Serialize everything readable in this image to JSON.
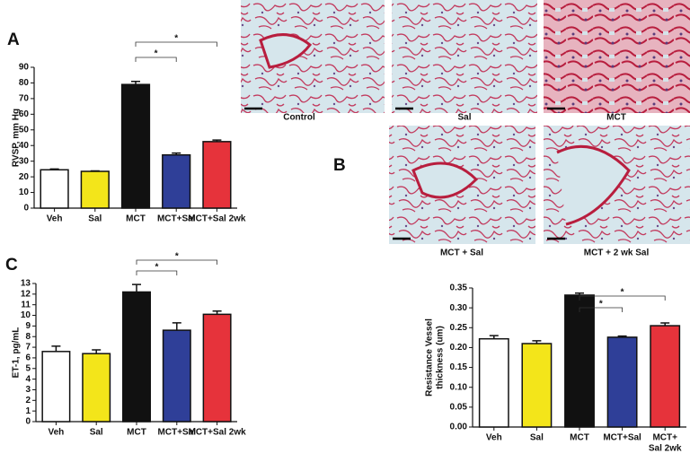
{
  "chart_data": [
    {
      "type": "bar",
      "panel": "A",
      "ylabel": [
        "RVSP, mm Hg"
      ],
      "categories": [
        "Veh",
        "Sal",
        "MCT",
        "MCT+Sal",
        "MCT+Sal 2wk"
      ],
      "values": [
        24.5,
        23.5,
        79,
        34,
        42.5
      ],
      "errors": [
        0.5,
        0.3,
        2,
        1.2,
        1
      ],
      "colors": [
        "#ffffff",
        "#f3e51a",
        "#111111",
        "#2f3f98",
        "#e6333b"
      ],
      "ylim": [
        0,
        90
      ],
      "yticks": [
        0,
        10,
        20,
        30,
        40,
        50,
        60,
        70,
        80,
        90
      ],
      "significance": [
        {
          "from": 2,
          "to": 3,
          "label": "*"
        },
        {
          "from": 2,
          "to": 4,
          "label": "*"
        }
      ]
    },
    {
      "type": "bar",
      "panel": "C",
      "ylabel": [
        "ET-1, pg/mL"
      ],
      "categories": [
        "Veh",
        "Sal",
        "MCT",
        "MCT+Sal",
        "MCT+Sal 2wk"
      ],
      "values": [
        6.6,
        6.4,
        12.2,
        8.6,
        10.1
      ],
      "errors": [
        0.5,
        0.35,
        0.7,
        0.7,
        0.3
      ],
      "colors": [
        "#ffffff",
        "#f3e51a",
        "#111111",
        "#2f3f98",
        "#e6333b"
      ],
      "ylim": [
        0,
        13
      ],
      "yticks": [
        0,
        1,
        2,
        3,
        4,
        5,
        6,
        7,
        8,
        9,
        10,
        11,
        12,
        13
      ],
      "significance": [
        {
          "from": 2,
          "to": 3,
          "label": "*"
        },
        {
          "from": 2,
          "to": 4,
          "label": "*"
        }
      ]
    },
    {
      "type": "bar",
      "ylabel": [
        "Resistance Vessel",
        "thickness (um)"
      ],
      "categories": [
        [
          "Veh"
        ],
        [
          "Sal"
        ],
        [
          "MCT"
        ],
        [
          "MCT+Sal"
        ],
        [
          "MCT+",
          "Sal 2wk"
        ]
      ],
      "values": [
        0.222,
        0.21,
        0.332,
        0.226,
        0.255
      ],
      "errors": [
        0.008,
        0.007,
        0.005,
        0.003,
        0.007
      ],
      "colors": [
        "#ffffff",
        "#f3e51a",
        "#111111",
        "#2f3f98",
        "#e6333b"
      ],
      "ylim": [
        0,
        0.35
      ],
      "yticks": [
        {
          "value": 0,
          "label": "0.00"
        },
        {
          "value": 0.05,
          "label": "0.05"
        },
        {
          "value": 0.1,
          "label": "0.10"
        },
        {
          "value": 0.15,
          "label": "0.15"
        },
        {
          "value": 0.2,
          "label": "0.20"
        },
        {
          "value": 0.25,
          "label": "0.25"
        },
        {
          "value": 0.3,
          "label": "0.30"
        },
        {
          "value": 0.35,
          "label": "0.35"
        }
      ],
      "significance": [
        {
          "from": 2,
          "to": 3,
          "label": "*"
        },
        {
          "from": 2,
          "to": 4,
          "label": "*"
        }
      ]
    }
  ],
  "histology": {
    "panel": "B",
    "captions": [
      "Control",
      "Sal",
      "MCT",
      "MCT + Sal",
      "MCT + 2 wk Sal"
    ]
  }
}
